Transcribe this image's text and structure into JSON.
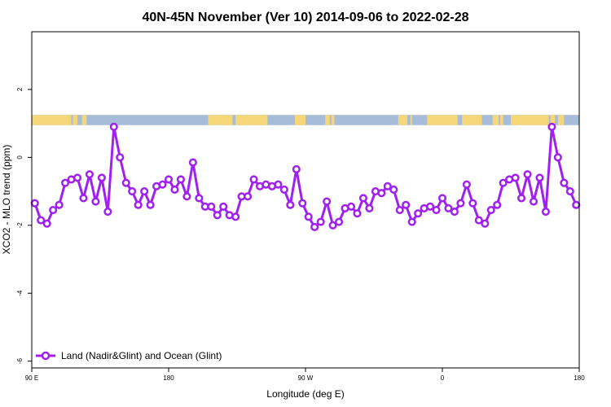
{
  "chart_data": {
    "type": "line",
    "title": "40N-45N November (Ver 10)   2014-09-06 to 2022-02-28",
    "xlabel": "Longitude (deg E)",
    "ylabel": "XCO2 - MLO trend (ppm)",
    "xlim": [
      90,
      450
    ],
    "ylim": [
      -6.2,
      3.7
    ],
    "x_ticks": [
      {
        "value": 90,
        "label": "90 E"
      },
      {
        "value": 180,
        "label": "180"
      },
      {
        "value": 270,
        "label": "90 W"
      },
      {
        "value": 360,
        "label": "0"
      },
      {
        "value": 450,
        "label": "180"
      }
    ],
    "y_ticks": [
      {
        "value": 2,
        "label": "2"
      },
      {
        "value": 0,
        "label": "0"
      },
      {
        "value": -2,
        "label": "-2"
      },
      {
        "value": -4,
        "label": "-4"
      },
      {
        "value": -6,
        "label": "-6"
      }
    ],
    "grid": false,
    "legend_position": "bottom-left",
    "series": [
      {
        "name": "Land (Nadir&Glint) and Ocean (Glint)",
        "color": "#a020f0",
        "x": [
          92,
          96,
          100,
          104,
          108,
          112,
          116,
          120,
          124,
          128,
          132,
          136,
          140,
          144,
          148,
          152,
          156,
          160,
          164,
          168,
          172,
          176,
          180,
          184,
          188,
          192,
          196,
          200,
          204,
          208,
          212,
          216,
          220,
          224,
          228,
          232,
          236,
          240,
          244,
          248,
          252,
          256,
          260,
          264,
          268,
          272,
          276,
          280,
          284,
          288,
          292,
          296,
          300,
          304,
          308,
          312,
          316,
          320,
          324,
          328,
          332,
          336,
          340,
          344,
          348,
          352,
          356,
          360,
          364,
          368,
          372,
          376,
          380,
          384,
          388,
          392,
          396,
          400,
          404,
          408,
          412,
          416,
          420,
          424,
          428,
          432,
          436,
          440,
          444,
          448
        ],
        "y": [
          -1.35,
          -1.85,
          -1.95,
          -1.55,
          -1.4,
          -0.75,
          -0.65,
          -0.6,
          -1.2,
          -0.5,
          -1.3,
          -0.6,
          -1.6,
          0.9,
          0.0,
          -0.75,
          -1.0,
          -1.4,
          -1.0,
          -1.4,
          -0.85,
          -0.8,
          -0.65,
          -0.95,
          -0.65,
          -1.15,
          -0.15,
          -1.2,
          -1.45,
          -1.45,
          -1.7,
          -1.45,
          -1.7,
          -1.75,
          -1.15,
          -1.15,
          -0.65,
          -0.85,
          -0.8,
          -0.85,
          -0.8,
          -0.95,
          -1.4,
          -0.35,
          -1.35,
          -1.75,
          -2.05,
          -1.9,
          -1.3,
          -2.0,
          -1.9,
          -1.5,
          -1.45,
          -1.65,
          -1.2,
          -1.5,
          -1.0,
          -1.05,
          -0.85,
          -0.95,
          -1.55,
          -1.4,
          -1.9,
          -1.65,
          -1.5,
          -1.45,
          -1.55,
          -1.2,
          -1.5,
          -1.6,
          -1.35,
          -0.8,
          -1.35,
          -1.85,
          -1.95,
          -1.55,
          -1.4,
          -0.75,
          -0.65,
          -0.6,
          -1.2,
          -0.5,
          -1.3,
          -0.6,
          -1.6,
          0.9,
          0.0,
          -0.75,
          -1.0,
          -1.4
        ]
      }
    ],
    "surface_band": {
      "y_range": [
        0.95,
        1.25
      ],
      "colors": {
        "land": "#f5d77a",
        "ocean": "#a6bcd8"
      },
      "land_intervals": [
        [
          90,
          116
        ],
        [
          117,
          120
        ],
        [
          123,
          126
        ],
        [
          206,
          222
        ],
        [
          224,
          245
        ],
        [
          263,
          270
        ],
        [
          283,
          286
        ],
        [
          287,
          289
        ],
        [
          331,
          337
        ],
        [
          339,
          340
        ],
        [
          350,
          370
        ],
        [
          373,
          386
        ],
        [
          393,
          397
        ],
        [
          398,
          400
        ],
        [
          405,
          430
        ],
        [
          431,
          434
        ],
        [
          436,
          440
        ]
      ]
    }
  }
}
